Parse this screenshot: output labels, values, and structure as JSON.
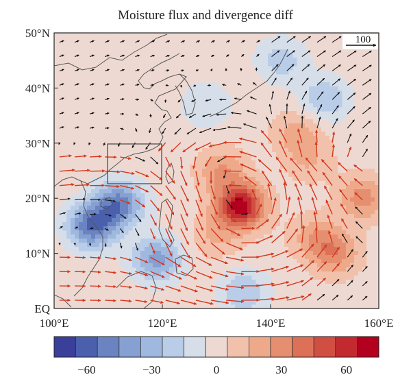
{
  "title": "Moisture flux and divergence diff",
  "map": {
    "lat_range": [
      0,
      50
    ],
    "lon_range": [
      100,
      160
    ],
    "lat_ticks": [
      {
        "value": 0,
        "label": "EQ"
      },
      {
        "value": 10,
        "label": "10°N"
      },
      {
        "value": 20,
        "label": "20°N"
      },
      {
        "value": 30,
        "label": "30°N"
      },
      {
        "value": 40,
        "label": "40°N"
      },
      {
        "value": 50,
        "label": "50°N"
      }
    ],
    "lon_ticks": [
      {
        "value": 100,
        "label": "100°E"
      },
      {
        "value": 120,
        "label": "120°E"
      },
      {
        "value": 140,
        "label": "140°E"
      },
      {
        "value": 160,
        "label": "160°E"
      }
    ],
    "reference_vector": {
      "label": "100",
      "magnitude": 100
    },
    "highlight_box": {
      "lon_min": 110,
      "lon_max": 122,
      "lat_min": 23,
      "lat_max": 30
    },
    "divergence_centers": [
      {
        "lon": 134.5,
        "lat": 18.5,
        "value": 70
      },
      {
        "lon": 131,
        "lat": 25,
        "value": 25
      },
      {
        "lon": 152,
        "lat": 10,
        "value": 30
      },
      {
        "lon": 157,
        "lat": 20,
        "value": 30
      },
      {
        "lon": 145,
        "lat": 32,
        "value": 20
      },
      {
        "lon": 147,
        "lat": 27,
        "value": 15
      },
      {
        "lon": 130,
        "lat": 13,
        "value": 15
      },
      {
        "lon": 148,
        "lat": 13,
        "value": 20
      },
      {
        "lon": 107,
        "lat": 15,
        "value": -55
      },
      {
        "lon": 112,
        "lat": 19,
        "value": -50
      },
      {
        "lon": 119,
        "lat": 9,
        "value": -40
      },
      {
        "lon": 135,
        "lat": 3,
        "value": -25
      },
      {
        "lon": 150,
        "lat": 38,
        "value": -25
      },
      {
        "lon": 142,
        "lat": 45,
        "value": -20
      },
      {
        "lon": 128,
        "lat": 37,
        "value": -15
      }
    ]
  },
  "colorbar": {
    "colors": [
      "#3a3f99",
      "#4b60ad",
      "#6a84c2",
      "#86a0d2",
      "#9fb8df",
      "#b9cde9",
      "#d6dfe9",
      "#eed9d2",
      "#f2c1ab",
      "#eea98a",
      "#e58f70",
      "#dc7158",
      "#d04f42",
      "#c22a30",
      "#b4001f"
    ],
    "ticks": [
      {
        "value": -60,
        "label": "−60"
      },
      {
        "value": -30,
        "label": "−30"
      },
      {
        "value": 0,
        "label": "0"
      },
      {
        "value": 30,
        "label": "30"
      },
      {
        "value": 60,
        "label": "60"
      }
    ],
    "range": [
      -75,
      75
    ]
  },
  "vector_colors": {
    "significant": "#d4371d",
    "normal": "#111111"
  }
}
